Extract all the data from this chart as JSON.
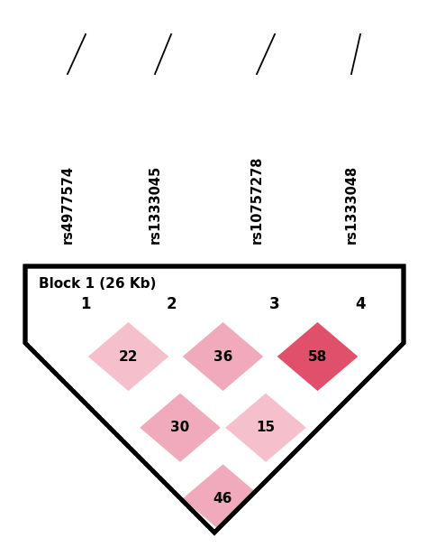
{
  "snp_labels": [
    "rs4977574",
    "rs1333045",
    "rs10757278",
    "rs1333048"
  ],
  "snp_numbers": [
    "1",
    "2",
    "3",
    "4"
  ],
  "block_label": "Block 1 (26 Kb)",
  "ld_values": {
    "1-2": 22,
    "2-3": 36,
    "3-4": 58,
    "1-3": 30,
    "2-4": 15,
    "1-4": 46
  },
  "background_color": "#ffffff",
  "text_color": "#000000",
  "figsize": [
    4.74,
    6.06
  ],
  "dpi": 100
}
